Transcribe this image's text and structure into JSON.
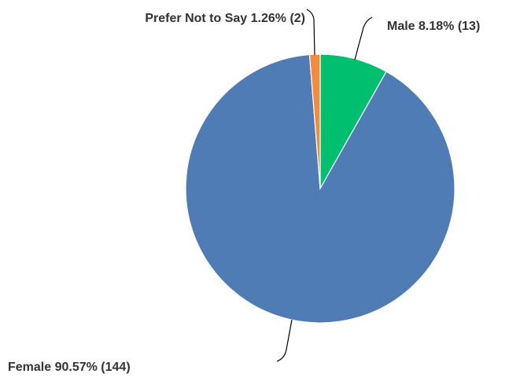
{
  "chart_data": {
    "type": "pie",
    "title": "",
    "start": "top",
    "direction": "clockwise",
    "slices": [
      {
        "name": "Male",
        "percent": 8.18,
        "count": 13,
        "color": "#00bf6f",
        "label": "Male 8.18% (13)"
      },
      {
        "name": "Female",
        "percent": 90.57,
        "count": 144,
        "color": "#507cb6",
        "label": "Female 90.57% (144)"
      },
      {
        "name": "Prefer Not to Say",
        "percent": 1.26,
        "count": 2,
        "color": "#f68a3c",
        "label": "Prefer Not to Say 1.26% (2)"
      }
    ]
  }
}
